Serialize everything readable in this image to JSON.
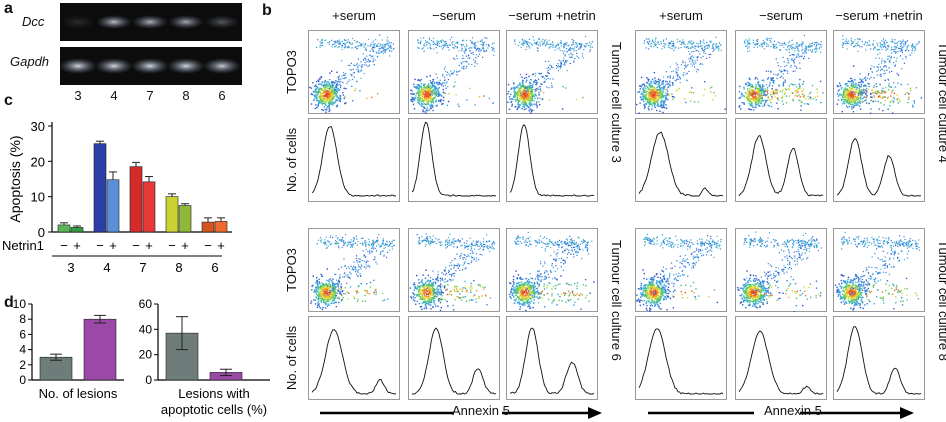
{
  "panel_labels": {
    "a": "a",
    "b": "b",
    "c": "c",
    "d": "d"
  },
  "panel_a": {
    "gene_top": "Dcc",
    "gene_bottom": "Gapdh",
    "lanes": [
      "3",
      "4",
      "7",
      "8",
      "6"
    ],
    "dcc_band_intensity": [
      0.15,
      0.8,
      0.75,
      0.7,
      0.35
    ],
    "gapdh_band_intensity": [
      0.9,
      0.9,
      0.9,
      0.9,
      0.85
    ]
  },
  "panel_b": {
    "column_headers_left": [
      "+serum",
      "−serum",
      "−serum +netrin"
    ],
    "column_headers_right": [
      "+serum",
      "−serum",
      "−serum +netrin"
    ],
    "row_label_dot": "TOPO3",
    "row_label_hist": "No. of cells",
    "cultures": [
      "Tumour cell culture 3",
      "Tumour cell culture 4",
      "Tumour cell culture 6",
      "Tumour cell culture 8"
    ],
    "x_axis_label": "Annexin 5"
  },
  "chart_data": [
    {
      "type": "bar",
      "panel": "c",
      "ylabel": "Apoptosis (%)",
      "ylim": [
        0,
        30
      ],
      "yticks": [
        0,
        10,
        20,
        30
      ],
      "group_axis_label": "Netrin1",
      "categories": [
        "3",
        "4",
        "7",
        "8",
        "6"
      ],
      "sign_labels": [
        "−",
        "+"
      ],
      "series": [
        {
          "name": "−",
          "values": [
            2.0,
            25.0,
            18.5,
            10.0,
            2.8
          ],
          "errors": [
            0.6,
            0.7,
            1.2,
            0.8,
            1.2
          ]
        },
        {
          "name": "+",
          "values": [
            1.3,
            14.8,
            14.2,
            7.5,
            3.0
          ],
          "errors": [
            0.4,
            2.2,
            1.5,
            0.5,
            1.0
          ]
        }
      ],
      "colors": {
        "3": [
          "#5ab55a",
          "#2e9e3c"
        ],
        "4": [
          "#2b3fa6",
          "#5b8fd8"
        ],
        "7": [
          "#d42a2a",
          "#e83838"
        ],
        "8": [
          "#c8d232",
          "#8fb83a"
        ],
        "6": [
          "#d35420",
          "#ef6a2a"
        ]
      }
    },
    {
      "type": "bar",
      "panel": "d-left",
      "xlabel": "No. of lesions",
      "ylim": [
        0,
        10
      ],
      "yticks": [
        0,
        2,
        4,
        6,
        8,
        10
      ],
      "values": [
        3.0,
        8.0
      ],
      "errors": [
        0.4,
        0.5
      ],
      "colors": [
        "#6e7d7a",
        "#9a4aa6"
      ]
    },
    {
      "type": "bar",
      "panel": "d-right",
      "xlabel_line1": "Lesions with",
      "xlabel_line2": "apoptotic cells (%)",
      "ylim": [
        0,
        60
      ],
      "yticks": [
        0,
        20,
        40,
        60
      ],
      "values": [
        37.0,
        6.0
      ],
      "errors": [
        13.0,
        2.5
      ],
      "colors": [
        "#6e7d7a",
        "#9a4aa6"
      ]
    }
  ]
}
